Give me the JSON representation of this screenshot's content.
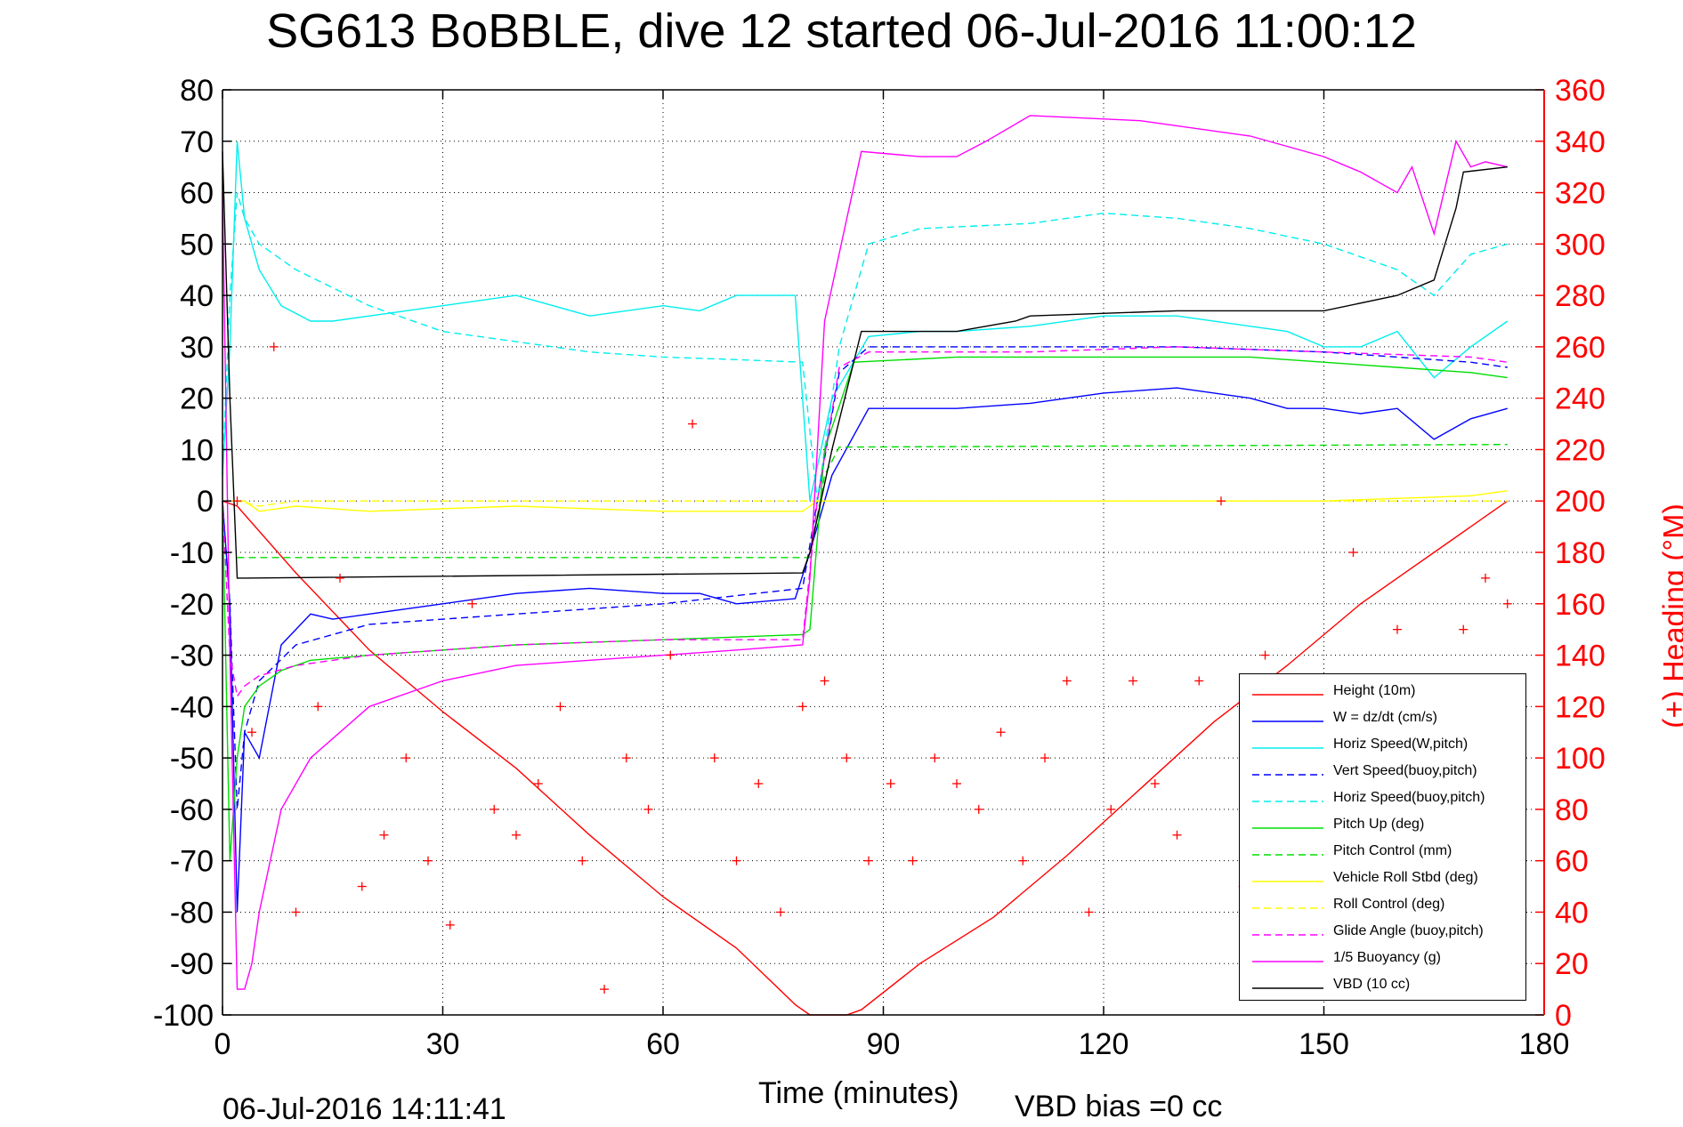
{
  "title": "SG613 BoBBLE, dive 12 started 06-Jul-2016 11:00:12",
  "xlabel": "Time (minutes)",
  "ylabel_right": "(+) Heading (°M)",
  "timestamp": "06-Jul-2016 14:11:41",
  "vbd_bias": "VBD bias =0 cc",
  "chart_data": {
    "type": "line",
    "xlim": [
      0,
      180
    ],
    "ylim": [
      -100,
      80
    ],
    "ylim_right": [
      0,
      360
    ],
    "xticks": [
      "0",
      "30",
      "60",
      "90",
      "120",
      "150",
      "180"
    ],
    "yticks": [
      "80",
      "70",
      "60",
      "50",
      "40",
      "30",
      "20",
      "10",
      "0",
      "-10",
      "-20",
      "-30",
      "-40",
      "-50",
      "-60",
      "-70",
      "-80",
      "-90",
      "-100"
    ],
    "yticks_right": [
      "360",
      "340",
      "320",
      "300",
      "280",
      "260",
      "240",
      "220",
      "200",
      "180",
      "160",
      "140",
      "120",
      "100",
      "80",
      "60",
      "40",
      "20",
      "0"
    ],
    "grid": true,
    "legend_position": "bottom-right",
    "series": [
      {
        "name": "Height (10m)",
        "color": "#ff0000",
        "style": "solid",
        "x": [
          0,
          2,
          10,
          20,
          30,
          40,
          50,
          60,
          70,
          78,
          80,
          85,
          87,
          95,
          105,
          115,
          125,
          135,
          145,
          155,
          165,
          175
        ],
        "y": [
          0,
          -1,
          -14,
          -29,
          -41,
          -52,
          -65,
          -77,
          -87,
          -98,
          -100,
          -100,
          -99,
          -90,
          -81,
          -69,
          -56,
          -43,
          -32,
          -20,
          -10,
          0
        ]
      },
      {
        "name": "W = dz/dt (cm/s)",
        "color": "#0000ff",
        "style": "solid",
        "x": [
          0,
          1,
          2,
          3,
          5,
          8,
          12,
          15,
          20,
          30,
          40,
          50,
          60,
          65,
          70,
          78,
          80,
          83,
          88,
          95,
          100,
          110,
          120,
          130,
          140,
          145,
          150,
          155,
          160,
          165,
          170,
          175
        ],
        "y": [
          0,
          -20,
          -80,
          -45,
          -50,
          -28,
          -22,
          -23,
          -22,
          -20,
          -18,
          -17,
          -18,
          -18,
          -20,
          -19,
          -10,
          5,
          18,
          18,
          18,
          19,
          21,
          22,
          20,
          18,
          18,
          17,
          18,
          12,
          16,
          18
        ]
      },
      {
        "name": "Horiz Speed(W,pitch)",
        "color": "#00eeee",
        "style": "solid",
        "x": [
          0,
          1,
          2,
          3,
          5,
          8,
          12,
          15,
          20,
          30,
          40,
          50,
          60,
          65,
          70,
          78,
          80,
          83,
          88,
          95,
          100,
          110,
          120,
          130,
          140,
          145,
          150,
          155,
          160,
          165,
          170,
          175
        ],
        "y": [
          5,
          30,
          70,
          55,
          45,
          38,
          35,
          35,
          36,
          38,
          40,
          36,
          38,
          37,
          40,
          40,
          0,
          20,
          32,
          33,
          33,
          34,
          36,
          36,
          34,
          33,
          30,
          30,
          33,
          24,
          30,
          35
        ]
      },
      {
        "name": "Vert Speed(buoy,pitch)",
        "color": "#0000ff",
        "style": "dashed",
        "x": [
          0,
          1,
          2,
          3,
          5,
          10,
          20,
          40,
          60,
          79,
          81,
          84,
          88,
          110,
          130,
          150,
          170,
          175
        ],
        "y": [
          0,
          -20,
          -60,
          -45,
          -35,
          -28,
          -24,
          -22,
          -20,
          -17,
          0,
          25,
          30,
          30,
          30,
          29,
          27,
          26
        ]
      },
      {
        "name": "Horiz Speed(buoy,pitch)",
        "color": "#00eeee",
        "style": "dashed",
        "x": [
          0,
          1,
          2,
          3,
          5,
          10,
          20,
          30,
          40,
          50,
          60,
          70,
          79,
          81,
          84,
          88,
          95,
          110,
          120,
          130,
          140,
          150,
          160,
          165,
          170,
          175
        ],
        "y": [
          5,
          40,
          60,
          55,
          50,
          45,
          38,
          33,
          31,
          29,
          28,
          27.5,
          27,
          0,
          30,
          50,
          53,
          54,
          56,
          55,
          53,
          50,
          45,
          40,
          48,
          50
        ]
      },
      {
        "name": "Pitch Up (deg)",
        "color": "#00dd00",
        "style": "solid",
        "x": [
          0,
          1,
          2,
          3,
          5,
          8,
          12,
          20,
          40,
          60,
          79,
          80,
          82,
          86,
          100,
          120,
          140,
          160,
          170,
          175
        ],
        "y": [
          0,
          -70,
          -50,
          -40,
          -36,
          -33,
          -31,
          -30,
          -28,
          -27,
          -26,
          -25,
          10,
          27,
          28,
          28,
          28,
          26,
          25,
          24
        ]
      },
      {
        "name": "Pitch Control (mm)",
        "color": "#00dd00",
        "style": "dashed",
        "x": [
          2,
          80,
          82,
          84,
          175
        ],
        "y": [
          -11,
          -11,
          5,
          10.5,
          11
        ]
      },
      {
        "name": "Vehicle Roll Stbd (deg)",
        "color": "#ffff00",
        "style": "solid",
        "x": [
          0,
          3,
          5,
          10,
          20,
          40,
          60,
          79,
          81,
          90,
          110,
          130,
          150,
          170,
          175
        ],
        "y": [
          0,
          0,
          -2,
          -1,
          -2,
          -1,
          -2,
          -2,
          0,
          0,
          0,
          0,
          0,
          1,
          2
        ]
      },
      {
        "name": "Roll Control (deg)",
        "color": "#ffff00",
        "style": "dashed",
        "x": [
          0,
          2,
          5,
          10,
          20,
          40,
          60,
          79,
          81,
          100,
          120,
          140,
          160,
          175
        ],
        "y": [
          0,
          0,
          -1,
          0,
          0,
          0,
          0,
          0,
          0,
          0,
          0,
          0,
          0,
          0
        ]
      },
      {
        "name": "Glide Angle (buoy,pitch)",
        "color": "#ff00ff",
        "style": "dashed",
        "x": [
          0,
          1,
          2,
          3,
          5,
          10,
          20,
          40,
          60,
          79,
          81,
          84,
          88,
          110,
          130,
          150,
          170,
          175
        ],
        "y": [
          0,
          -30,
          -38,
          -36,
          -34,
          -32,
          -30,
          -28,
          -27,
          -27,
          0,
          26,
          29,
          29,
          30,
          29,
          28,
          27
        ]
      },
      {
        "name": "1/5 Buoyancy (g)",
        "color": "#ff00ff",
        "style": "solid",
        "x": [
          0,
          1,
          2,
          3,
          4,
          5,
          8,
          12,
          20,
          30,
          40,
          50,
          60,
          70,
          79,
          80,
          81,
          82,
          87,
          95,
          100,
          104,
          110,
          125,
          140,
          150,
          155,
          160,
          162,
          165,
          168,
          170,
          172,
          175
        ],
        "y": [
          60,
          -30,
          -95,
          -95,
          -90,
          -80,
          -60,
          -50,
          -40,
          -35,
          -32,
          -31,
          -30,
          -29,
          -28,
          -15,
          10,
          35,
          68,
          67,
          67,
          70,
          75,
          74,
          71,
          67,
          64,
          60,
          65,
          52,
          70,
          65,
          66,
          65
        ]
      },
      {
        "name": "VBD (10 cc)",
        "color": "#000000",
        "style": "solid",
        "x": [
          0,
          1,
          2,
          3,
          79,
          80,
          83,
          87,
          100,
          108,
          110,
          130,
          150,
          160,
          165,
          168,
          169,
          175
        ],
        "y": [
          68,
          20,
          -15,
          -15,
          -14,
          -10,
          10,
          33,
          33,
          35,
          36,
          37,
          37,
          40,
          43,
          57,
          64,
          65
        ]
      },
      {
        "name": "Heading",
        "color": "#ff0000",
        "style": "markers",
        "marker": "+",
        "axis": "right",
        "x": [
          2,
          4,
          7,
          10,
          13,
          16,
          19,
          22,
          25,
          28,
          31,
          34,
          37,
          40,
          43,
          46,
          49,
          52,
          55,
          58,
          61,
          64,
          67,
          70,
          73,
          76,
          79,
          82,
          85,
          88,
          91,
          94,
          97,
          100,
          103,
          106,
          109,
          112,
          115,
          118,
          121,
          124,
          127,
          130,
          133,
          136,
          139,
          142,
          145,
          148,
          151,
          154,
          157,
          160,
          163,
          166,
          169,
          172,
          175
        ],
        "y": [
          200,
          110,
          260,
          40,
          120,
          170,
          50,
          70,
          100,
          60,
          35,
          160,
          80,
          70,
          90,
          120,
          60,
          10,
          100,
          80,
          140,
          230,
          100,
          60,
          90,
          40,
          120,
          130,
          100,
          60,
          90,
          60,
          100,
          90,
          80,
          110,
          60,
          100,
          130,
          40,
          80,
          130,
          90,
          70,
          130,
          200,
          50,
          140,
          100,
          60,
          90,
          180,
          120,
          150,
          110,
          80,
          150,
          170,
          160
        ]
      }
    ]
  }
}
